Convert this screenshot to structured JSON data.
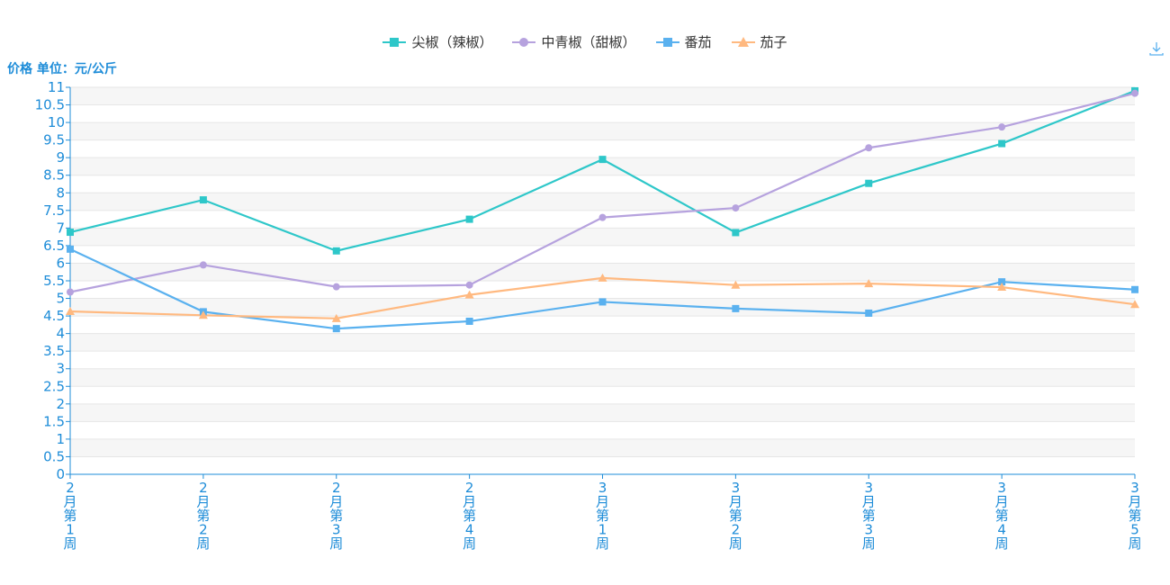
{
  "chart_data": {
    "type": "line",
    "ylabel": "价格 单位：元/公斤",
    "categories": [
      "2\n月\n第\n1\n周",
      "2\n月\n第\n2\n周",
      "2\n月\n第\n3\n周",
      "2\n月\n第\n4\n周",
      "3\n月\n第\n1\n周",
      "3\n月\n第\n2\n周",
      "3\n月\n第\n3\n周",
      "3\n月\n第\n4\n周",
      "3\n月\n第\n5\n周"
    ],
    "ylim": [
      0,
      11
    ],
    "yticks": [
      "0",
      "0.5",
      "1",
      "1.5",
      "2",
      "2.5",
      "3",
      "3.5",
      "4",
      "4.5",
      "5",
      "5.5",
      "6",
      "6.5",
      "7",
      "7.5",
      "8",
      "8.5",
      "9",
      "9.5",
      "10",
      "10.5",
      "11"
    ],
    "grid": true,
    "legend_position": "top-center",
    "series": [
      {
        "name": "尖椒（辣椒）",
        "color": "#2ec7c9",
        "marker": "square",
        "values": [
          6.88,
          7.8,
          6.35,
          7.25,
          8.95,
          6.87,
          8.27,
          9.4,
          10.9
        ]
      },
      {
        "name": "中青椒（甜椒）",
        "color": "#b6a2de",
        "marker": "circle",
        "values": [
          5.18,
          5.95,
          5.33,
          5.38,
          7.3,
          7.57,
          9.28,
          9.87,
          10.83
        ]
      },
      {
        "name": "番茄",
        "color": "#5ab1ef",
        "marker": "square",
        "values": [
          6.4,
          4.62,
          4.14,
          4.35,
          4.9,
          4.71,
          4.58,
          5.47,
          5.25
        ]
      },
      {
        "name": "茄子",
        "color": "#ffb980",
        "marker": "triangle",
        "values": [
          4.63,
          4.52,
          4.43,
          5.1,
          5.58,
          5.38,
          5.42,
          5.32,
          4.83
        ]
      }
    ]
  },
  "colors": {
    "axis": "#1d8cd8",
    "grid": "#e6e6e6",
    "band": "#f6f6f6"
  },
  "icons": {
    "download": "download-icon"
  }
}
